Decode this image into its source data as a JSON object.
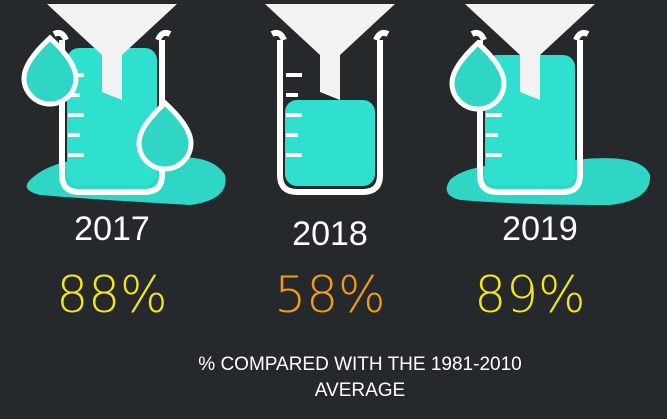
{
  "items": [
    {
      "year": "2017",
      "value": "88%"
    },
    {
      "year": "2018",
      "value": "58%"
    },
    {
      "year": "2019",
      "value": "89%"
    }
  ],
  "caption": "% COMPARED WITH THE 1981-2010 AVERAGE"
}
